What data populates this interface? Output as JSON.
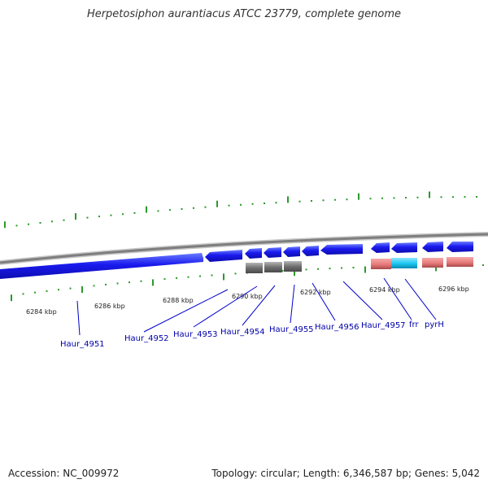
{
  "header": {
    "title": "Herpetosiphon aurantiacus ATCC 23779, complete genome"
  },
  "footer": {
    "accession": "Accession: NC_009972",
    "summary": "Topology: circular; Length: 6,346,587 bp; Genes: 5,042"
  },
  "scale_labels": [
    "6284 kbp",
    "6286 kbp",
    "6288 kbp",
    "6290 kbp",
    "6292 kbp",
    "6294 kbp",
    "6296 kbp"
  ],
  "gene_labels": [
    "Haur_4951",
    "Haur_4952",
    "Haur_4953",
    "Haur_4954",
    "Haur_4955",
    "Haur_4956",
    "Haur_4957",
    "frr",
    "pyrH"
  ],
  "colors": {
    "backbone": "#888888",
    "cds": "#1a1aee",
    "cds_highlight": "#6a7dff",
    "protein_gray": "#6f6f6f",
    "protein_red": "#e87a7a",
    "protein_cyan": "#19c6f0",
    "tick": "#2a9a2a",
    "leader": "#0000cc"
  }
}
